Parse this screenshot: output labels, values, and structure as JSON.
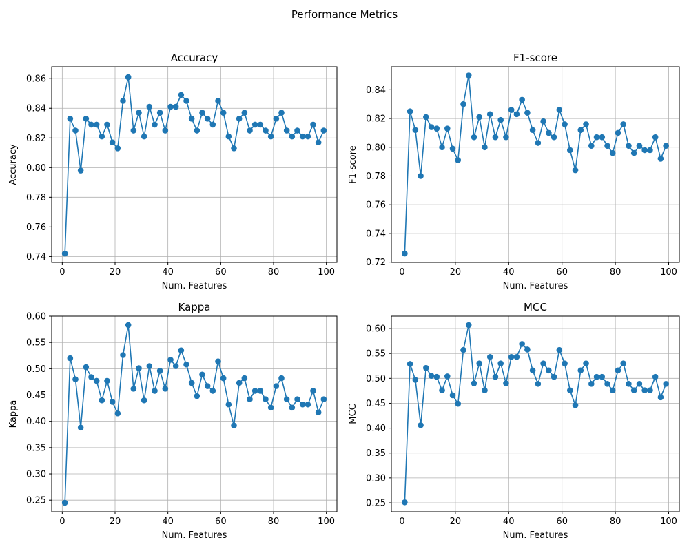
{
  "figure": {
    "suptitle": "Performance Metrics"
  },
  "colors": {
    "line": "#1f77b4",
    "grid": "#b0b0b0",
    "axis": "#000000"
  },
  "chart_data": [
    {
      "type": "line",
      "title": "Accuracy",
      "xlabel": "Num. Features",
      "ylabel": "Accuracy",
      "xlim": [
        -4,
        104
      ],
      "ylim": [
        0.736,
        0.868
      ],
      "xticks": [
        0,
        20,
        40,
        60,
        80,
        100
      ],
      "yticks": [
        0.74,
        0.76,
        0.78,
        0.8,
        0.82,
        0.84,
        0.86
      ],
      "ytick_labels": [
        "0.74",
        "0.76",
        "0.78",
        "0.80",
        "0.82",
        "0.84",
        "0.86"
      ],
      "grid": true,
      "marker": "o",
      "x": [
        1,
        3,
        5,
        7,
        9,
        11,
        13,
        15,
        17,
        19,
        21,
        23,
        25,
        27,
        29,
        31,
        33,
        35,
        37,
        39,
        41,
        43,
        45,
        47,
        49,
        51,
        53,
        55,
        57,
        59,
        61,
        63,
        65,
        67,
        69,
        71,
        73,
        75,
        77,
        79,
        81,
        83,
        85,
        87,
        89,
        91,
        93,
        95,
        97,
        99
      ],
      "y": [
        0.742,
        0.833,
        0.825,
        0.798,
        0.833,
        0.829,
        0.829,
        0.821,
        0.829,
        0.817,
        0.813,
        0.845,
        0.861,
        0.825,
        0.837,
        0.821,
        0.841,
        0.829,
        0.837,
        0.825,
        0.841,
        0.841,
        0.849,
        0.845,
        0.833,
        0.825,
        0.837,
        0.833,
        0.829,
        0.845,
        0.837,
        0.821,
        0.813,
        0.833,
        0.837,
        0.825,
        0.829,
        0.829,
        0.825,
        0.821,
        0.833,
        0.837,
        0.825,
        0.821,
        0.825,
        0.821,
        0.821,
        0.829,
        0.817,
        0.825
      ]
    },
    {
      "type": "line",
      "title": "F1-score",
      "xlabel": "Num. Features",
      "ylabel": "F1-score",
      "xlim": [
        -4,
        104
      ],
      "ylim": [
        0.7198,
        0.856
      ],
      "xticks": [
        0,
        20,
        40,
        60,
        80,
        100
      ],
      "yticks": [
        0.72,
        0.74,
        0.76,
        0.78,
        0.8,
        0.82,
        0.84
      ],
      "ytick_labels": [
        "0.72",
        "0.74",
        "0.76",
        "0.78",
        "0.80",
        "0.82",
        "0.84"
      ],
      "grid": true,
      "marker": "o",
      "x": [
        1,
        3,
        5,
        7,
        9,
        11,
        13,
        15,
        17,
        19,
        21,
        23,
        25,
        27,
        29,
        31,
        33,
        35,
        37,
        39,
        41,
        43,
        45,
        47,
        49,
        51,
        53,
        55,
        57,
        59,
        61,
        63,
        65,
        67,
        69,
        71,
        73,
        75,
        77,
        79,
        81,
        83,
        85,
        87,
        89,
        91,
        93,
        95,
        97,
        99
      ],
      "y": [
        0.726,
        0.825,
        0.812,
        0.78,
        0.821,
        0.814,
        0.813,
        0.8,
        0.813,
        0.799,
        0.791,
        0.83,
        0.85,
        0.807,
        0.821,
        0.8,
        0.823,
        0.807,
        0.819,
        0.807,
        0.826,
        0.823,
        0.833,
        0.824,
        0.812,
        0.803,
        0.818,
        0.81,
        0.807,
        0.826,
        0.816,
        0.798,
        0.784,
        0.812,
        0.816,
        0.801,
        0.807,
        0.807,
        0.801,
        0.796,
        0.81,
        0.816,
        0.801,
        0.796,
        0.801,
        0.798,
        0.798,
        0.807,
        0.792,
        0.801
      ]
    },
    {
      "type": "line",
      "title": "Kappa",
      "xlabel": "Num. Features",
      "ylabel": "Kappa",
      "xlim": [
        -4,
        104
      ],
      "ylim": [
        0.228,
        0.6
      ],
      "xticks": [
        0,
        20,
        40,
        60,
        80,
        100
      ],
      "yticks": [
        0.25,
        0.3,
        0.35,
        0.4,
        0.45,
        0.5,
        0.55,
        0.6
      ],
      "ytick_labels": [
        "0.25",
        "0.30",
        "0.35",
        "0.40",
        "0.45",
        "0.50",
        "0.55",
        "0.60"
      ],
      "grid": true,
      "marker": "o",
      "x": [
        1,
        3,
        5,
        7,
        9,
        11,
        13,
        15,
        17,
        19,
        21,
        23,
        25,
        27,
        29,
        31,
        33,
        35,
        37,
        39,
        41,
        43,
        45,
        47,
        49,
        51,
        53,
        55,
        57,
        59,
        61,
        63,
        65,
        67,
        69,
        71,
        73,
        75,
        77,
        79,
        81,
        83,
        85,
        87,
        89,
        91,
        93,
        95,
        97,
        99
      ],
      "y": [
        0.245,
        0.52,
        0.48,
        0.388,
        0.503,
        0.484,
        0.477,
        0.44,
        0.477,
        0.437,
        0.415,
        0.526,
        0.583,
        0.462,
        0.501,
        0.44,
        0.505,
        0.458,
        0.496,
        0.462,
        0.517,
        0.505,
        0.535,
        0.508,
        0.473,
        0.448,
        0.489,
        0.467,
        0.458,
        0.514,
        0.482,
        0.432,
        0.392,
        0.473,
        0.482,
        0.442,
        0.458,
        0.458,
        0.442,
        0.426,
        0.467,
        0.482,
        0.442,
        0.426,
        0.442,
        0.432,
        0.432,
        0.458,
        0.417,
        0.442
      ]
    },
    {
      "type": "line",
      "title": "MCC",
      "xlabel": "Num. Features",
      "ylabel": "MCC",
      "xlim": [
        -4,
        104
      ],
      "ylim": [
        0.232,
        0.625
      ],
      "xticks": [
        0,
        20,
        40,
        60,
        80,
        100
      ],
      "yticks": [
        0.25,
        0.3,
        0.35,
        0.4,
        0.45,
        0.5,
        0.55,
        0.6
      ],
      "ytick_labels": [
        "0.25",
        "0.30",
        "0.35",
        "0.40",
        "0.45",
        "0.50",
        "0.55",
        "0.60"
      ],
      "grid": true,
      "marker": "o",
      "x": [
        1,
        3,
        5,
        7,
        9,
        11,
        13,
        15,
        17,
        19,
        21,
        23,
        25,
        27,
        29,
        31,
        33,
        35,
        37,
        39,
        41,
        43,
        45,
        47,
        49,
        51,
        53,
        55,
        57,
        59,
        61,
        63,
        65,
        67,
        69,
        71,
        73,
        75,
        77,
        79,
        81,
        83,
        85,
        87,
        89,
        91,
        93,
        95,
        97,
        99
      ],
      "y": [
        0.251,
        0.529,
        0.497,
        0.406,
        0.521,
        0.505,
        0.503,
        0.476,
        0.504,
        0.466,
        0.449,
        0.557,
        0.607,
        0.49,
        0.53,
        0.476,
        0.543,
        0.503,
        0.53,
        0.49,
        0.543,
        0.543,
        0.569,
        0.558,
        0.516,
        0.489,
        0.53,
        0.516,
        0.503,
        0.557,
        0.53,
        0.476,
        0.446,
        0.516,
        0.53,
        0.489,
        0.503,
        0.503,
        0.489,
        0.476,
        0.516,
        0.53,
        0.489,
        0.476,
        0.489,
        0.476,
        0.476,
        0.503,
        0.462,
        0.489
      ]
    }
  ]
}
